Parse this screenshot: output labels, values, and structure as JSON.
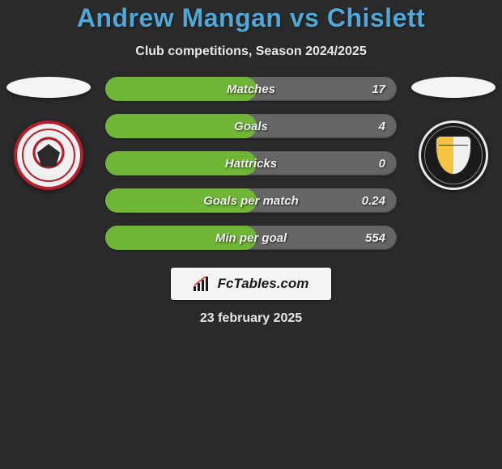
{
  "header": {
    "title": "Andrew Mangan vs Chislett",
    "subtitle": "Club competitions, Season 2024/2025"
  },
  "colors": {
    "title_color": "#4fa8d8",
    "pill_bg": "#666666",
    "pill_fill": "#6fb536",
    "text_light": "#e8e8e8",
    "page_bg": "#2a2a2a"
  },
  "left_team": {
    "crest_name": "accrington-stanley",
    "ring_color": "#b51e2a"
  },
  "right_team": {
    "crest_name": "port-vale",
    "ring_color": "#e8e8e8"
  },
  "stats": [
    {
      "label": "Matches",
      "value": "17",
      "fill_pct": 52
    },
    {
      "label": "Goals",
      "value": "4",
      "fill_pct": 52
    },
    {
      "label": "Hattricks",
      "value": "0",
      "fill_pct": 52
    },
    {
      "label": "Goals per match",
      "value": "0.24",
      "fill_pct": 52
    },
    {
      "label": "Min per goal",
      "value": "554",
      "fill_pct": 52
    }
  ],
  "brand": {
    "text": "FcTables.com"
  },
  "footer": {
    "date": "23 february 2025"
  }
}
